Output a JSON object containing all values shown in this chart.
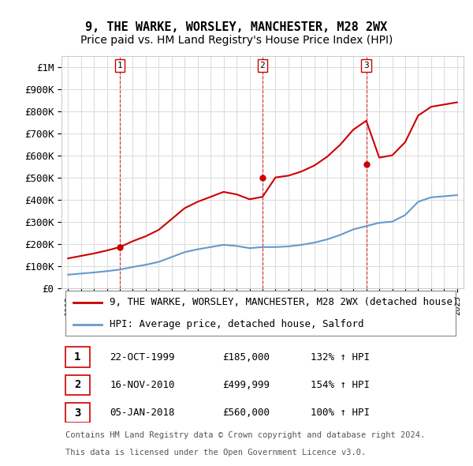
{
  "title": "9, THE WARKE, WORSLEY, MANCHESTER, M28 2WX",
  "subtitle": "Price paid vs. HM Land Registry's House Price Index (HPI)",
  "xlabel": "",
  "ylabel": "",
  "ylim": [
    0,
    1050000
  ],
  "yticks": [
    0,
    100000,
    200000,
    300000,
    400000,
    500000,
    600000,
    700000,
    800000,
    900000,
    1000000
  ],
  "ytick_labels": [
    "£0",
    "£100K",
    "£200K",
    "£300K",
    "£400K",
    "£500K",
    "£600K",
    "£700K",
    "£800K",
    "£900K",
    "£1M"
  ],
  "sale_dates": [
    "1999-10-22",
    "2010-11-16",
    "2018-01-05"
  ],
  "sale_prices": [
    185000,
    499999,
    560000
  ],
  "sale_labels": [
    "1",
    "2",
    "3"
  ],
  "sale_info": [
    [
      "1",
      "22-OCT-1999",
      "£185,000",
      "132% ↑ HPI"
    ],
    [
      "2",
      "16-NOV-2010",
      "£499,999",
      "154% ↑ HPI"
    ],
    [
      "3",
      "05-JAN-2018",
      "£560,000",
      "100% ↑ HPI"
    ]
  ],
  "red_line_color": "#cc0000",
  "blue_line_color": "#6699cc",
  "legend_red_label": "9, THE WARKE, WORSLEY, MANCHESTER, M28 2WX (detached house)",
  "legend_blue_label": "HPI: Average price, detached house, Salford",
  "footer1": "Contains HM Land Registry data © Crown copyright and database right 2024.",
  "footer2": "This data is licensed under the Open Government Licence v3.0.",
  "background_color": "#ffffff",
  "grid_color": "#dddddd",
  "title_fontsize": 11,
  "subtitle_fontsize": 10,
  "tick_fontsize": 9,
  "legend_fontsize": 9,
  "table_fontsize": 9,
  "footer_fontsize": 7.5
}
